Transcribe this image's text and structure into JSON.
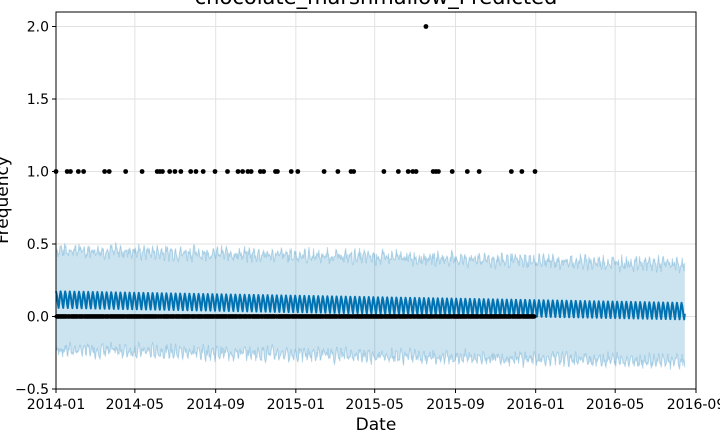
{
  "chart_data": {
    "type": "scatter",
    "title": "chocolate_marshmallow_Predicted",
    "xlabel": "Date",
    "ylabel": "Frequency",
    "grid": true,
    "legend": "none",
    "x_range": [
      "2014-01-01",
      "2016-09-01"
    ],
    "ylim": [
      -0.5,
      2.1
    ],
    "x_ticks": [
      "2014-01",
      "2014-05",
      "2014-09",
      "2015-01",
      "2015-05",
      "2015-09",
      "2016-01",
      "2016-05",
      "2016-09"
    ],
    "y_ticks": [
      "−0.5",
      "0.0",
      "0.5",
      "1.0",
      "1.5",
      "2.0"
    ],
    "series": [
      {
        "role": "observed",
        "color": "#000000",
        "x_start": "2014-01-01",
        "x_end": "2015-12-31",
        "baseline_value": 0,
        "points": [
          {
            "x": "2014-01-01",
            "y": 1
          },
          {
            "x": "2014-01-18",
            "y": 1
          },
          {
            "x": "2014-01-23",
            "y": 1
          },
          {
            "x": "2014-02-04",
            "y": 1
          },
          {
            "x": "2014-02-12",
            "y": 1
          },
          {
            "x": "2014-03-16",
            "y": 1
          },
          {
            "x": "2014-03-23",
            "y": 1
          },
          {
            "x": "2014-04-17",
            "y": 1
          },
          {
            "x": "2014-05-12",
            "y": 1
          },
          {
            "x": "2014-06-04",
            "y": 1
          },
          {
            "x": "2014-06-08",
            "y": 1
          },
          {
            "x": "2014-06-12",
            "y": 1
          },
          {
            "x": "2014-06-23",
            "y": 1
          },
          {
            "x": "2014-07-01",
            "y": 1
          },
          {
            "x": "2014-07-10",
            "y": 1
          },
          {
            "x": "2014-07-25",
            "y": 1
          },
          {
            "x": "2014-08-02",
            "y": 1
          },
          {
            "x": "2014-08-13",
            "y": 1
          },
          {
            "x": "2014-08-31",
            "y": 1
          },
          {
            "x": "2014-09-19",
            "y": 1
          },
          {
            "x": "2014-10-05",
            "y": 1
          },
          {
            "x": "2014-10-12",
            "y": 1
          },
          {
            "x": "2014-10-20",
            "y": 1
          },
          {
            "x": "2014-10-25",
            "y": 1
          },
          {
            "x": "2014-11-08",
            "y": 1
          },
          {
            "x": "2014-11-13",
            "y": 1
          },
          {
            "x": "2014-12-01",
            "y": 1
          },
          {
            "x": "2014-12-04",
            "y": 1
          },
          {
            "x": "2014-12-25",
            "y": 1
          },
          {
            "x": "2015-01-04",
            "y": 1
          },
          {
            "x": "2015-02-13",
            "y": 1
          },
          {
            "x": "2015-03-06",
            "y": 1
          },
          {
            "x": "2015-03-26",
            "y": 1
          },
          {
            "x": "2015-03-30",
            "y": 1
          },
          {
            "x": "2015-05-15",
            "y": 1
          },
          {
            "x": "2015-06-06",
            "y": 1
          },
          {
            "x": "2015-06-21",
            "y": 1
          },
          {
            "x": "2015-06-28",
            "y": 1
          },
          {
            "x": "2015-07-03",
            "y": 1
          },
          {
            "x": "2015-07-18",
            "y": 2
          },
          {
            "x": "2015-07-29",
            "y": 1
          },
          {
            "x": "2015-08-02",
            "y": 1
          },
          {
            "x": "2015-08-06",
            "y": 1
          },
          {
            "x": "2015-08-27",
            "y": 1
          },
          {
            "x": "2015-09-19",
            "y": 1
          },
          {
            "x": "2015-10-07",
            "y": 1
          },
          {
            "x": "2015-11-25",
            "y": 1
          },
          {
            "x": "2015-12-11",
            "y": 1
          },
          {
            "x": "2015-12-31",
            "y": 1
          }
        ]
      },
      {
        "role": "forecast",
        "color": "#0072B2",
        "x_start": "2014-01-01",
        "x_end": "2016-08-15",
        "trend_start": 0.12,
        "trend_end": 0.04,
        "weekly_amplitude": 0.06
      },
      {
        "role": "uncertainty_interval",
        "color": "#0072B2",
        "upper_start": 0.46,
        "upper_end": 0.36,
        "lower_start": -0.23,
        "lower_end": -0.31
      }
    ]
  }
}
